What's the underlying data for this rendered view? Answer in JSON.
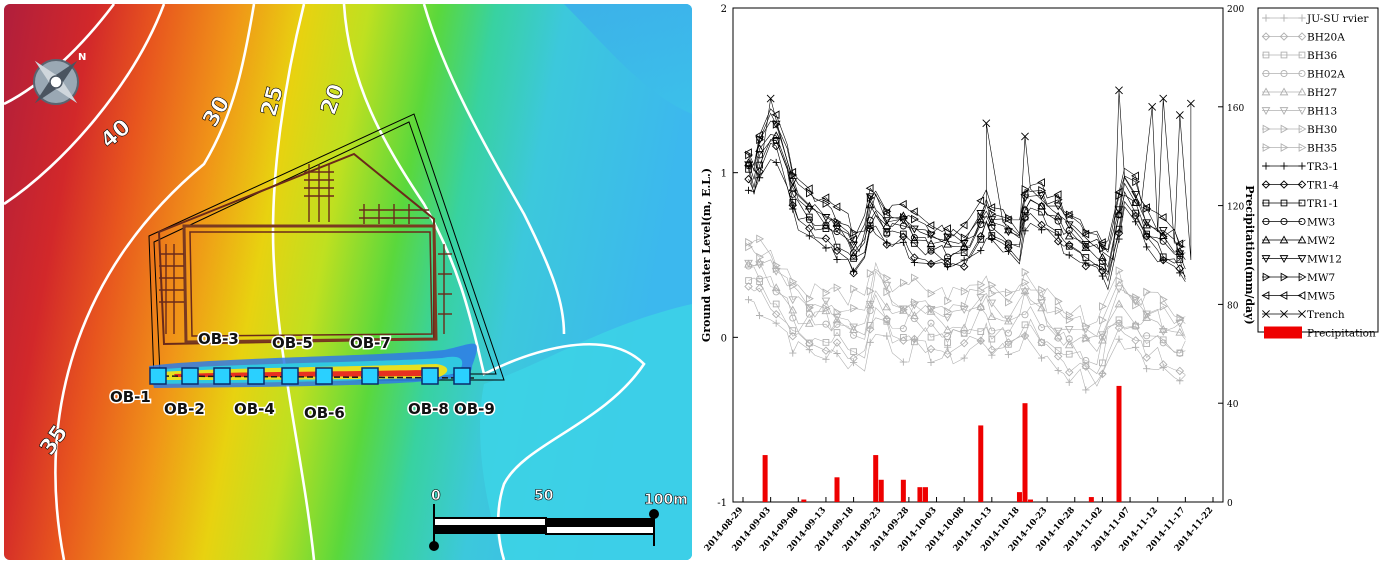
{
  "map": {
    "contour_labels": [
      "40",
      "30",
      "25",
      "20",
      "35"
    ],
    "wells_top": [
      "OB-3",
      "OB-5",
      "OB-7"
    ],
    "wells_bottom": [
      "OB-1",
      "OB-2",
      "OB-4",
      "OB-6",
      "OB-8",
      "OB-9"
    ],
    "scale_labels": [
      "0",
      "50",
      "100m"
    ],
    "compass_icon": "compass-rose-icon"
  },
  "chart_data": {
    "type": "line",
    "xlabel": "",
    "ylabel": "Ground water Level(m, E.L.)",
    "y2label": "Precipitation(mm/day)",
    "ylim": [
      -1,
      2
    ],
    "y2lim": [
      0,
      200
    ],
    "yticks": [
      "-1",
      "0",
      "1",
      "2"
    ],
    "y2ticks": [
      "0",
      "40",
      "80",
      "120",
      "160",
      "200"
    ],
    "xticks": [
      "2014-08-29",
      "2014-09-03",
      "2014-09-08",
      "2014-09-13",
      "2014-09-18",
      "2014-09-23",
      "2014-09-28",
      "2014-10-03",
      "2014-10-08",
      "2014-10-13",
      "2014-10-18",
      "2014-10-23",
      "2014-10-28",
      "2014-11-02",
      "2014-11-07",
      "2014-11-12",
      "2014-11-17",
      "2014-11-22"
    ],
    "x_start": "2014-08-29",
    "x_end": "2014-11-22",
    "legend_position": "right",
    "legend": [
      "JU-SU rvier",
      "BH20A",
      "BH36",
      "BH02A",
      "BH27",
      "BH13",
      "BH30",
      "BH35",
      "TR3-1",
      "TR1-4",
      "TR1-1",
      "MW3",
      "MW2",
      "MW12",
      "MW7",
      "MW5",
      "Trench",
      "Precipitation"
    ],
    "series_style": [
      {
        "name": "JU-SU rvier",
        "marker": "+",
        "color": "#b0b0b0"
      },
      {
        "name": "BH20A",
        "marker": "diamond",
        "color": "#b0b0b0"
      },
      {
        "name": "BH36",
        "marker": "square",
        "color": "#b0b0b0"
      },
      {
        "name": "BH02A",
        "marker": "circle",
        "color": "#b0b0b0"
      },
      {
        "name": "BH27",
        "marker": "triangle-up",
        "color": "#b0b0b0"
      },
      {
        "name": "BH13",
        "marker": "triangle-down",
        "color": "#b0b0b0"
      },
      {
        "name": "BH30",
        "marker": "triangle-right",
        "color": "#b0b0b0"
      },
      {
        "name": "BH35",
        "marker": "triangle-right",
        "color": "#b0b0b0"
      },
      {
        "name": "TR3-1",
        "marker": "+",
        "color": "#000000"
      },
      {
        "name": "TR1-4",
        "marker": "diamond",
        "color": "#000000"
      },
      {
        "name": "TR1-1",
        "marker": "square",
        "color": "#000000"
      },
      {
        "name": "MW3",
        "marker": "circle",
        "color": "#000000"
      },
      {
        "name": "MW2",
        "marker": "triangle-up",
        "color": "#000000"
      },
      {
        "name": "MW12",
        "marker": "triangle-down",
        "color": "#000000"
      },
      {
        "name": "MW7",
        "marker": "triangle-right",
        "color": "#000000"
      },
      {
        "name": "MW5",
        "marker": "triangle-left",
        "color": "#000000"
      },
      {
        "name": "Trench",
        "marker": "x",
        "color": "#000000"
      }
    ],
    "precip_color": "#ee0000",
    "precipitation": [
      {
        "date": "2014-09-02",
        "mm": 19
      },
      {
        "date": "2014-09-09",
        "mm": 1
      },
      {
        "date": "2014-09-15",
        "mm": 10
      },
      {
        "date": "2014-09-22",
        "mm": 19
      },
      {
        "date": "2014-09-23",
        "mm": 9
      },
      {
        "date": "2014-09-27",
        "mm": 9
      },
      {
        "date": "2014-09-30",
        "mm": 6
      },
      {
        "date": "2014-10-01",
        "mm": 6
      },
      {
        "date": "2014-10-11",
        "mm": 31
      },
      {
        "date": "2014-10-18",
        "mm": 4
      },
      {
        "date": "2014-10-19",
        "mm": 40
      },
      {
        "date": "2014-10-20",
        "mm": 1
      },
      {
        "date": "2014-10-31",
        "mm": 2
      },
      {
        "date": "2014-11-05",
        "mm": 47
      }
    ],
    "series_black_mean": [
      {
        "date": "2014-08-30",
        "y": 1.05
      },
      {
        "date": "2014-09-01",
        "y": 0.95
      },
      {
        "date": "2014-09-02",
        "y": 1.2
      },
      {
        "date": "2014-09-04",
        "y": 1.3
      },
      {
        "date": "2014-09-06",
        "y": 1.05
      },
      {
        "date": "2014-09-08",
        "y": 0.85
      },
      {
        "date": "2014-09-11",
        "y": 0.75
      },
      {
        "date": "2014-09-14",
        "y": 0.7
      },
      {
        "date": "2014-09-17",
        "y": 0.62
      },
      {
        "date": "2014-09-19",
        "y": 0.5
      },
      {
        "date": "2014-09-22",
        "y": 0.85
      },
      {
        "date": "2014-09-24",
        "y": 0.68
      },
      {
        "date": "2014-09-27",
        "y": 0.7
      },
      {
        "date": "2014-09-30",
        "y": 0.62
      },
      {
        "date": "2014-10-03",
        "y": 0.58
      },
      {
        "date": "2014-10-07",
        "y": 0.55
      },
      {
        "date": "2014-10-10",
        "y": 0.6
      },
      {
        "date": "2014-10-12",
        "y": 0.78
      },
      {
        "date": "2014-10-15",
        "y": 0.68
      },
      {
        "date": "2014-10-18",
        "y": 0.6
      },
      {
        "date": "2014-10-20",
        "y": 0.88
      },
      {
        "date": "2014-10-24",
        "y": 0.75
      },
      {
        "date": "2014-10-28",
        "y": 0.65
      },
      {
        "date": "2014-10-31",
        "y": 0.55
      },
      {
        "date": "2014-11-04",
        "y": 0.45
      },
      {
        "date": "2014-11-06",
        "y": 0.95
      },
      {
        "date": "2014-11-09",
        "y": 0.78
      },
      {
        "date": "2014-11-12",
        "y": 0.62
      },
      {
        "date": "2014-11-15",
        "y": 0.55
      },
      {
        "date": "2014-11-18",
        "y": 0.45
      }
    ],
    "series_gray_mean": [
      {
        "date": "2014-08-30",
        "y": 0.45
      },
      {
        "date": "2014-09-02",
        "y": 0.4
      },
      {
        "date": "2014-09-05",
        "y": 0.3
      },
      {
        "date": "2014-09-08",
        "y": 0.15
      },
      {
        "date": "2014-09-12",
        "y": 0.12
      },
      {
        "date": "2014-09-16",
        "y": 0.1
      },
      {
        "date": "2014-09-20",
        "y": 0.05
      },
      {
        "date": "2014-09-23",
        "y": 0.3
      },
      {
        "date": "2014-09-26",
        "y": 0.1
      },
      {
        "date": "2014-09-30",
        "y": 0.15
      },
      {
        "date": "2014-10-04",
        "y": 0.1
      },
      {
        "date": "2014-10-08",
        "y": 0.1
      },
      {
        "date": "2014-10-12",
        "y": 0.2
      },
      {
        "date": "2014-10-16",
        "y": 0.1
      },
      {
        "date": "2014-10-20",
        "y": 0.25
      },
      {
        "date": "2014-10-24",
        "y": 0.05
      },
      {
        "date": "2014-10-28",
        "y": 0.0
      },
      {
        "date": "2014-11-01",
        "y": -0.1
      },
      {
        "date": "2014-11-05",
        "y": 0.2
      },
      {
        "date": "2014-11-09",
        "y": 0.1
      },
      {
        "date": "2014-11-13",
        "y": 0.05
      },
      {
        "date": "2014-11-18",
        "y": 0.0
      }
    ],
    "trench_peaks": [
      {
        "date": "2014-09-03",
        "y": 1.45
      },
      {
        "date": "2014-10-12",
        "y": 1.3
      },
      {
        "date": "2014-10-19",
        "y": 1.22
      },
      {
        "date": "2014-11-05",
        "y": 1.5
      },
      {
        "date": "2014-11-11",
        "y": 1.4
      },
      {
        "date": "2014-11-13",
        "y": 1.45
      },
      {
        "date": "2014-11-16",
        "y": 1.35
      },
      {
        "date": "2014-11-18",
        "y": 1.42
      }
    ]
  }
}
